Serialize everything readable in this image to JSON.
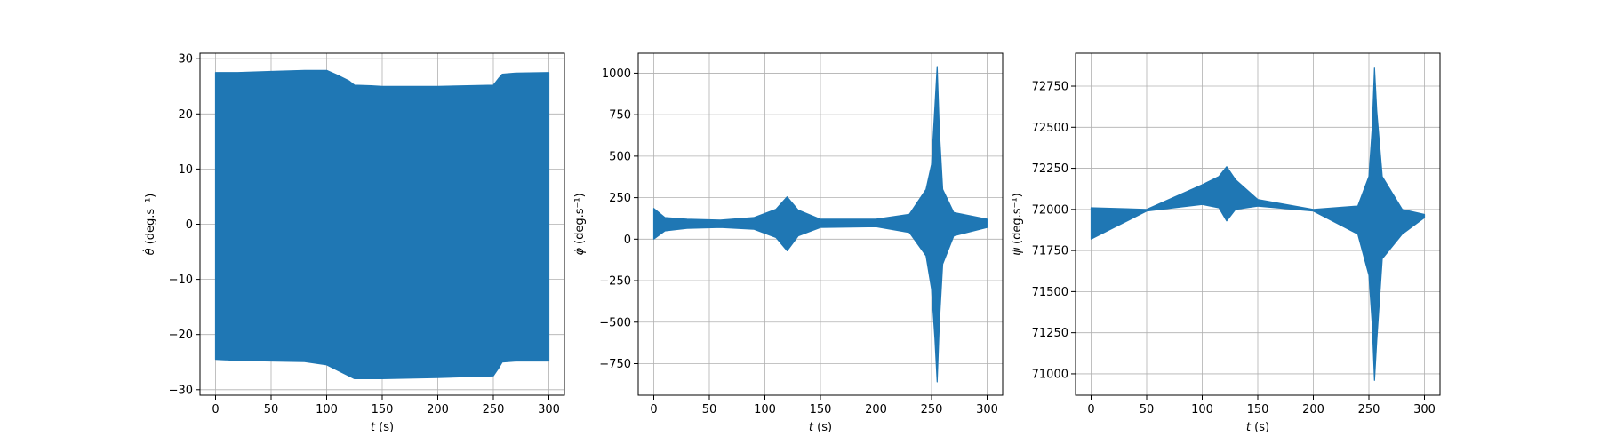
{
  "chart_data": [
    {
      "type": "line",
      "title": "",
      "xlabel": "t (s)",
      "xlabel_var": "t",
      "xlabel_unit": "(s)",
      "ylabel": "θ̇ (deg.s⁻¹)",
      "ylabel_var": "θ̇",
      "ylabel_unit": "(deg.s⁻¹)",
      "xlim": [
        -14,
        314
      ],
      "ylim": [
        -31,
        31
      ],
      "xticks": [
        0,
        50,
        100,
        150,
        200,
        250,
        300
      ],
      "yticks": [
        -30,
        -20,
        -10,
        0,
        10,
        20,
        30
      ],
      "ytick_labels": [
        "−30",
        "−20",
        "−10",
        "0",
        "10",
        "20",
        "30"
      ],
      "grid": true,
      "color": "#1f77b4",
      "series": [
        {
          "t": [
            0,
            20,
            50,
            80,
            100,
            110,
            120,
            125,
            140,
            150,
            200,
            250,
            255,
            258,
            270,
            300
          ],
          "upper": [
            27.5,
            27.5,
            27.7,
            27.9,
            27.9,
            27.0,
            26.0,
            25.2,
            25.1,
            25.0,
            25.0,
            25.2,
            26.5,
            27.2,
            27.4,
            27.5
          ],
          "lower": [
            -24.5,
            -24.7,
            -24.8,
            -24.9,
            -25.5,
            -26.5,
            -27.5,
            -28.0,
            -28.0,
            -28.0,
            -27.8,
            -27.5,
            -26.0,
            -25.0,
            -24.8,
            -24.8
          ]
        }
      ]
    },
    {
      "type": "line",
      "title": "",
      "xlabel": "t (s)",
      "xlabel_var": "t",
      "xlabel_unit": "(s)",
      "ylabel": "φ̇ (deg.s⁻¹)",
      "ylabel_var": "φ̇",
      "ylabel_unit": "(deg.s⁻¹)",
      "xlim": [
        -14,
        314
      ],
      "ylim": [
        -940,
        1120
      ],
      "xticks": [
        0,
        50,
        100,
        150,
        200,
        250,
        300
      ],
      "yticks": [
        -750,
        -500,
        -250,
        0,
        250,
        500,
        750,
        1000
      ],
      "ytick_labels": [
        "−750",
        "−500",
        "−250",
        "0",
        "250",
        "500",
        "750",
        "1000"
      ],
      "grid": true,
      "color": "#1f77b4",
      "series": [
        {
          "t": [
            0,
            10,
            30,
            60,
            90,
            110,
            120,
            130,
            150,
            200,
            230,
            245,
            250,
            253,
            255,
            257,
            260,
            270,
            300
          ],
          "upper": [
            185,
            130,
            120,
            115,
            130,
            180,
            255,
            175,
            120,
            120,
            150,
            300,
            450,
            800,
            1040,
            650,
            300,
            160,
            120
          ],
          "lower": [
            0,
            50,
            65,
            70,
            60,
            10,
            -70,
            20,
            70,
            75,
            40,
            -100,
            -300,
            -600,
            -860,
            -500,
            -150,
            20,
            70
          ]
        }
      ]
    },
    {
      "type": "line",
      "title": "",
      "xlabel": "t (s)",
      "xlabel_var": "t",
      "xlabel_unit": "(s)",
      "ylabel": "ψ̇ (deg.s⁻¹)",
      "ylabel_var": "ψ̇",
      "ylabel_unit": "(deg.s⁻¹)",
      "xlim": [
        -14,
        314
      ],
      "ylim": [
        70870,
        72950
      ],
      "xticks": [
        0,
        50,
        100,
        150,
        200,
        250,
        300
      ],
      "yticks": [
        71000,
        71250,
        71500,
        71750,
        72000,
        72250,
        72500,
        72750
      ],
      "ytick_labels": [
        "71000",
        "71250",
        "71500",
        "71750",
        "72000",
        "72250",
        "72500",
        "72750"
      ],
      "grid": true,
      "color": "#1f77b4",
      "series": [
        {
          "t": [
            0,
            50,
            100,
            115,
            122,
            130,
            150,
            200,
            240,
            250,
            253,
            255,
            257,
            262,
            280,
            300
          ],
          "upper": [
            72010,
            72000,
            72150,
            72200,
            72260,
            72180,
            72060,
            72000,
            72020,
            72200,
            72500,
            72860,
            72600,
            72200,
            72000,
            71970
          ],
          "lower": [
            71820,
            71990,
            72030,
            72010,
            71930,
            72000,
            72020,
            71990,
            71850,
            71600,
            71300,
            70960,
            71200,
            71700,
            71850,
            71950
          ]
        }
      ]
    }
  ]
}
